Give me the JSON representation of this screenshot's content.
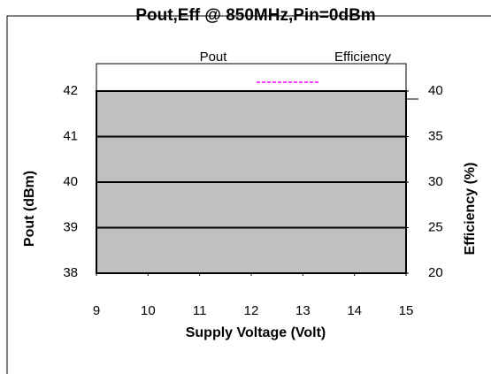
{
  "chart_data": {
    "type": "line",
    "title": "Pout,Eff @ 850MHz,Pin=0dBm",
    "xlabel": "Supply Voltage  (Volt)",
    "ylabel": "Pout (dBm)",
    "y2label": "Efficiency (%)",
    "x": [],
    "series": [
      {
        "name": "Pout",
        "values": []
      },
      {
        "name": "Efficiency",
        "color": "#ff00ff",
        "values": [],
        "axis": "y2"
      }
    ],
    "xlim": [
      9,
      15
    ],
    "xticks": [
      9,
      10,
      11,
      12,
      13,
      14,
      15
    ],
    "ylim": [
      38,
      42
    ],
    "yticks": [
      38,
      39,
      40,
      41,
      42
    ],
    "y2lim": [
      20,
      40
    ],
    "y2ticks": [
      20,
      25,
      30,
      35,
      40
    ],
    "grid": true,
    "legend": "top"
  }
}
